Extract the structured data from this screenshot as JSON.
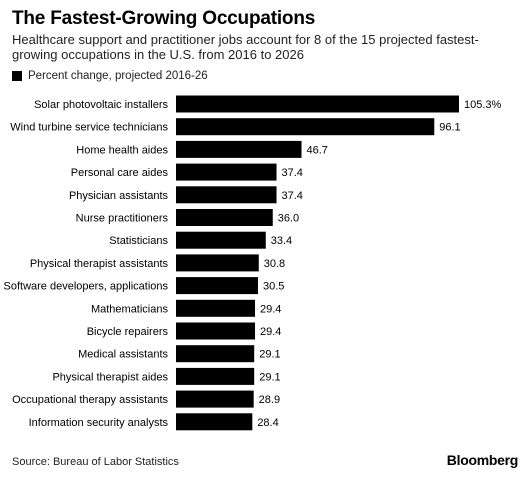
{
  "title": "The Fastest-Growing Occupations",
  "subtitle": "Healthcare support and practitioner jobs account for 8 of the 15 projected fastest-growing occupations in the U.S. from 2016 to 2026",
  "source": "Source: Bureau of Labor Statistics",
  "brand": "Bloomberg",
  "chart_data": {
    "type": "bar",
    "orientation": "horizontal",
    "legend": [
      "Percent change, projected 2016-26"
    ],
    "legend_position": "top-left",
    "bar_color": "#000000",
    "categories": [
      "Solar photovoltaic installers",
      "Wind turbine service technicians",
      "Home health aides",
      "Personal care aides",
      "Physician assistants",
      "Nurse practitioners",
      "Statisticians",
      "Physical therapist assistants",
      "Software developers, applications",
      "Mathematicians",
      "Bicycle repairers",
      "Medical assistants",
      "Physical therapist aides",
      "Occupational therapy assistants",
      "Information security analysts"
    ],
    "values": [
      105.3,
      96.1,
      46.7,
      37.4,
      37.4,
      36.0,
      33.4,
      30.8,
      30.5,
      29.4,
      29.4,
      29.1,
      29.1,
      28.9,
      28.4
    ],
    "value_labels": [
      "105.3%",
      "96.1",
      "46.7",
      "37.4",
      "37.4",
      "36.0",
      "33.4",
      "30.8",
      "30.5",
      "29.4",
      "29.4",
      "29.1",
      "29.1",
      "28.9",
      "28.4"
    ],
    "xlim": [
      0,
      105.3
    ],
    "grid": false
  }
}
